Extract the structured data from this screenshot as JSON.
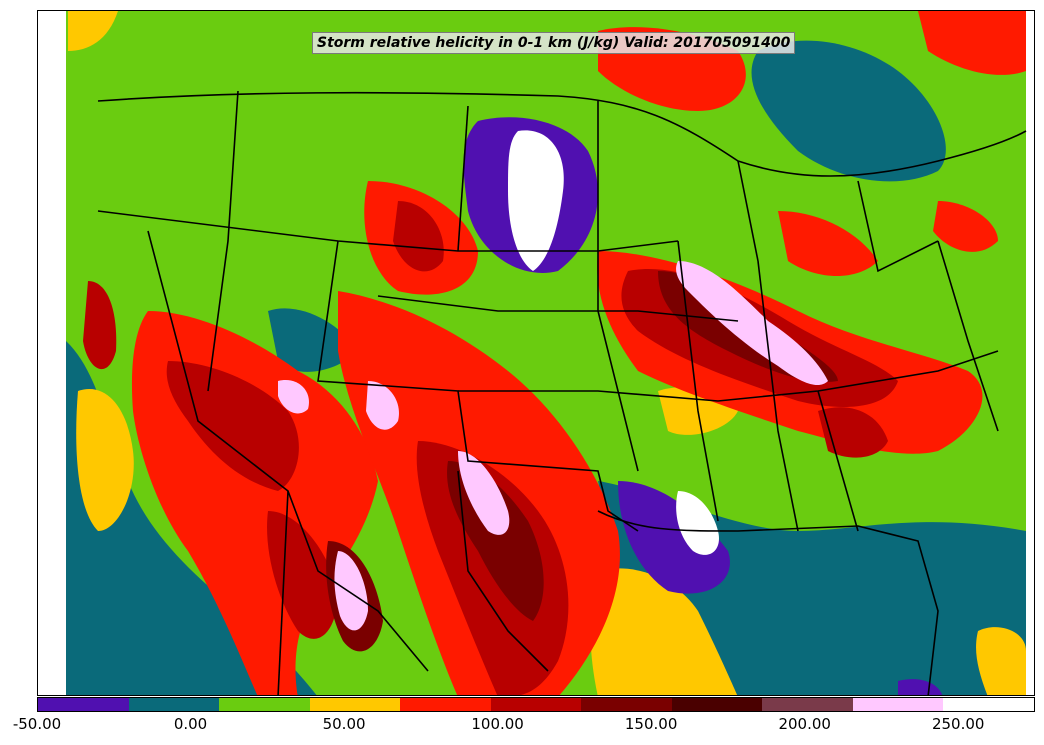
{
  "title": "Storm relative helicity in 0-1 km (J/kg) Valid: 201705091400",
  "colorbar": {
    "colors": [
      "#5010b0",
      "#0a6a7a",
      "#6acc10",
      "#ffc800",
      "#ff1a00",
      "#b80000",
      "#7a0000",
      "#4a0000",
      "#7a3a4a",
      "#ffc8ff",
      "#ffffff"
    ],
    "tick_labels": [
      "-50.00",
      "0.00",
      "50.00",
      "100.00",
      "150.00",
      "200.00",
      "250.00"
    ]
  },
  "map": {
    "projection": "Lambert conformal (CONUS)",
    "field_colors": {
      "negative": "#5010b0",
      "near_zero": "#0a6a7a",
      "low": "#6acc10",
      "moderate": "#ffc800",
      "high": "#ff1a00",
      "very_high": "#b80000",
      "extreme": "#7a0000",
      "max": "#ffc8ff"
    }
  }
}
